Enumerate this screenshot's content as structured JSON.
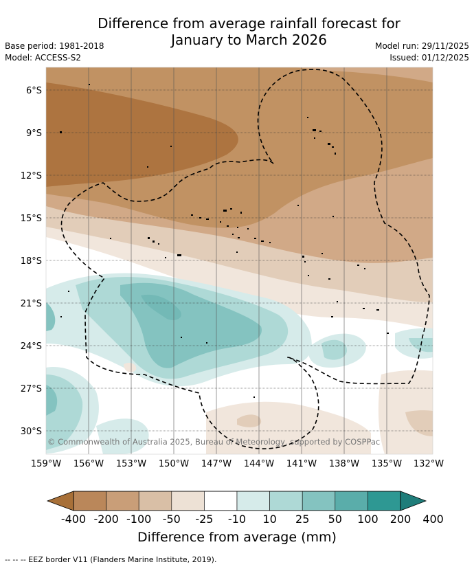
{
  "title": {
    "line1": "Difference from average rainfall forecast for",
    "line2": "January to March 2026"
  },
  "meta": {
    "base_period": "Base period: 1981-2018",
    "model": "Model: ACCESS-S2",
    "model_run": "Model run: 29/11/2025",
    "issued": "Issued: 01/12/2025"
  },
  "map": {
    "lat_labels": [
      "6°S",
      "9°S",
      "12°S",
      "15°S",
      "18°S",
      "21°S",
      "24°S",
      "27°S",
      "30°S"
    ],
    "lon_labels": [
      "159°W",
      "156°W",
      "153°W",
      "150°W",
      "147°W",
      "144°W",
      "141°W",
      "138°W",
      "135°W",
      "132°W"
    ],
    "copyright": "© Commonwealth of Australia 2025, Bureau of Meteorology, supported by COSPPac"
  },
  "legend": {
    "colors": [
      "#a87038",
      "#ba875a",
      "#c99e78",
      "#d9bfa6",
      "#ede1d5",
      "#ffffff",
      "#d6ebea",
      "#aed9d6",
      "#84c3c0",
      "#5aadaa",
      "#2e9893",
      "#1f7d7a"
    ],
    "labels": [
      "-400",
      "-200",
      "-100",
      "-50",
      "-25",
      "-10",
      "10",
      "25",
      "50",
      "100",
      "200",
      "400"
    ],
    "title": "Difference from average (mm)"
  },
  "footnote": "--  --  -- EEZ border V11 (Flanders Marine Institute, 2019)."
}
